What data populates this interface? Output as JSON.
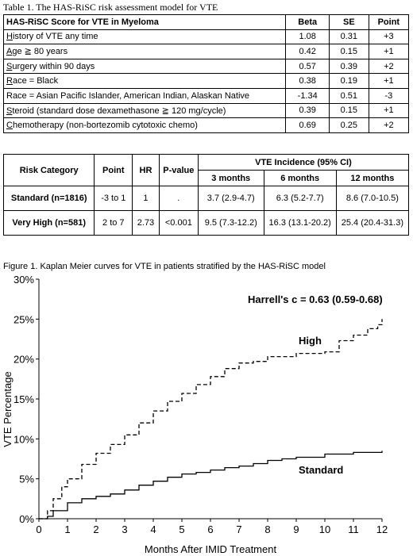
{
  "table1": {
    "caption": "Table 1. The HAS-RiSC risk assessment model for VTE",
    "headers": [
      "HAS-RiSC Score for VTE in Myeloma",
      "Beta",
      "SE",
      "Point"
    ],
    "rows": [
      {
        "ul": "H",
        "rest": "istory of VTE any time",
        "beta": "1.08",
        "se": "0.31",
        "point": "+3"
      },
      {
        "ul": "A",
        "rest": "ge ≧ 80 years",
        "beta": "0.42",
        "se": "0.15",
        "point": "+1"
      },
      {
        "ul": "S",
        "rest": "urgery within 90 days",
        "beta": "0.57",
        "se": "0.39",
        "point": "+2"
      },
      {
        "ul": "R",
        "rest": "ace = Black",
        "beta": "0.38",
        "se": "0.19",
        "point": "+1"
      },
      {
        "ul": "",
        "rest": "Race = Asian Pacific Islander, American Indian, Alaskan Native",
        "beta": "-1.34",
        "se": "0.51",
        "point": "-3"
      },
      {
        "ul": "S",
        "rest": "teroid (standard dose dexamethasone ≧ 120 mg/cycle)",
        "beta": "0.39",
        "se": "0.15",
        "point": "+1"
      },
      {
        "ul": "C",
        "rest": "hemotherapy (non-bortezomib cytotoxic chemo)",
        "beta": "0.69",
        "se": "0.25",
        "point": "+2"
      }
    ]
  },
  "table2": {
    "h_risk": "Risk Category",
    "h_point": "Point",
    "h_hr": "HR",
    "h_p": "P-value",
    "h_vte": "VTE Incidence (95% CI)",
    "h_3m": "3 months",
    "h_6m": "6 months",
    "h_12m": "12 months",
    "rows": [
      {
        "cat": "Standard (n=1816)",
        "point": "-3 to 1",
        "hr": "1",
        "p": ".",
        "m3": "3.7 (2.9-4.7)",
        "m6": "6.3 (5.2-7.7)",
        "m12": "8.6 (7.0-10.5)"
      },
      {
        "cat": "Very High (n=581)",
        "point": "2 to 7",
        "hr": "2.73",
        "p": "<0.001",
        "m3": "9.5 (7.3-12.2)",
        "m6": "16.3 (13.1-20.2)",
        "m12": "25.4 (20.4-31.3)"
      }
    ]
  },
  "figure": {
    "caption": "Figure 1. Kaplan Meier curves for VTE in patients stratified by the HAS-RiSC model"
  },
  "chart_data": {
    "type": "line",
    "xlabel": "Months After IMID Treatment",
    "ylabel": "VTE Percentage",
    "xlim": [
      0,
      12
    ],
    "ylim": [
      0,
      30
    ],
    "xticks": [
      "0",
      "1",
      "2",
      "3",
      "4",
      "5",
      "6",
      "7",
      "8",
      "9",
      "10",
      "11",
      "12"
    ],
    "yticks": [
      "0%",
      "5%",
      "10%",
      "15%",
      "20%",
      "25%",
      "30%"
    ],
    "annotation": "Harrell's c = 0.63 (0.59-0.68)",
    "series": [
      {
        "name": "High",
        "style": "dashed",
        "x": [
          0,
          0.3,
          0.5,
          0.8,
          1.0,
          1.5,
          2.0,
          2.5,
          3.0,
          3.5,
          4.0,
          4.5,
          5.0,
          5.5,
          6.0,
          6.5,
          7.0,
          7.5,
          8.0,
          9.0,
          10.0,
          10.5,
          11.0,
          11.5,
          11.85,
          12.0
        ],
        "y": [
          0,
          1.0,
          2.5,
          4.0,
          5.0,
          6.8,
          8.2,
          9.3,
          10.5,
          12.0,
          13.5,
          14.7,
          15.7,
          16.8,
          17.8,
          18.8,
          19.5,
          19.7,
          20.3,
          20.7,
          20.9,
          22.3,
          23.0,
          23.8,
          24.3,
          25.0
        ]
      },
      {
        "name": "Standard",
        "style": "solid",
        "x": [
          0,
          0.3,
          0.5,
          1.0,
          1.5,
          2.0,
          2.5,
          3.0,
          3.5,
          4.0,
          4.5,
          5.0,
          5.5,
          6.0,
          6.5,
          7.0,
          7.5,
          8.0,
          8.5,
          9.0,
          10.0,
          11.0,
          12.0
        ],
        "y": [
          0,
          0.3,
          1.0,
          2.0,
          2.5,
          2.8,
          3.1,
          3.6,
          4.2,
          4.7,
          5.2,
          5.6,
          5.8,
          6.1,
          6.4,
          6.6,
          6.9,
          7.3,
          7.5,
          7.7,
          8.1,
          8.3,
          8.5
        ]
      }
    ]
  }
}
